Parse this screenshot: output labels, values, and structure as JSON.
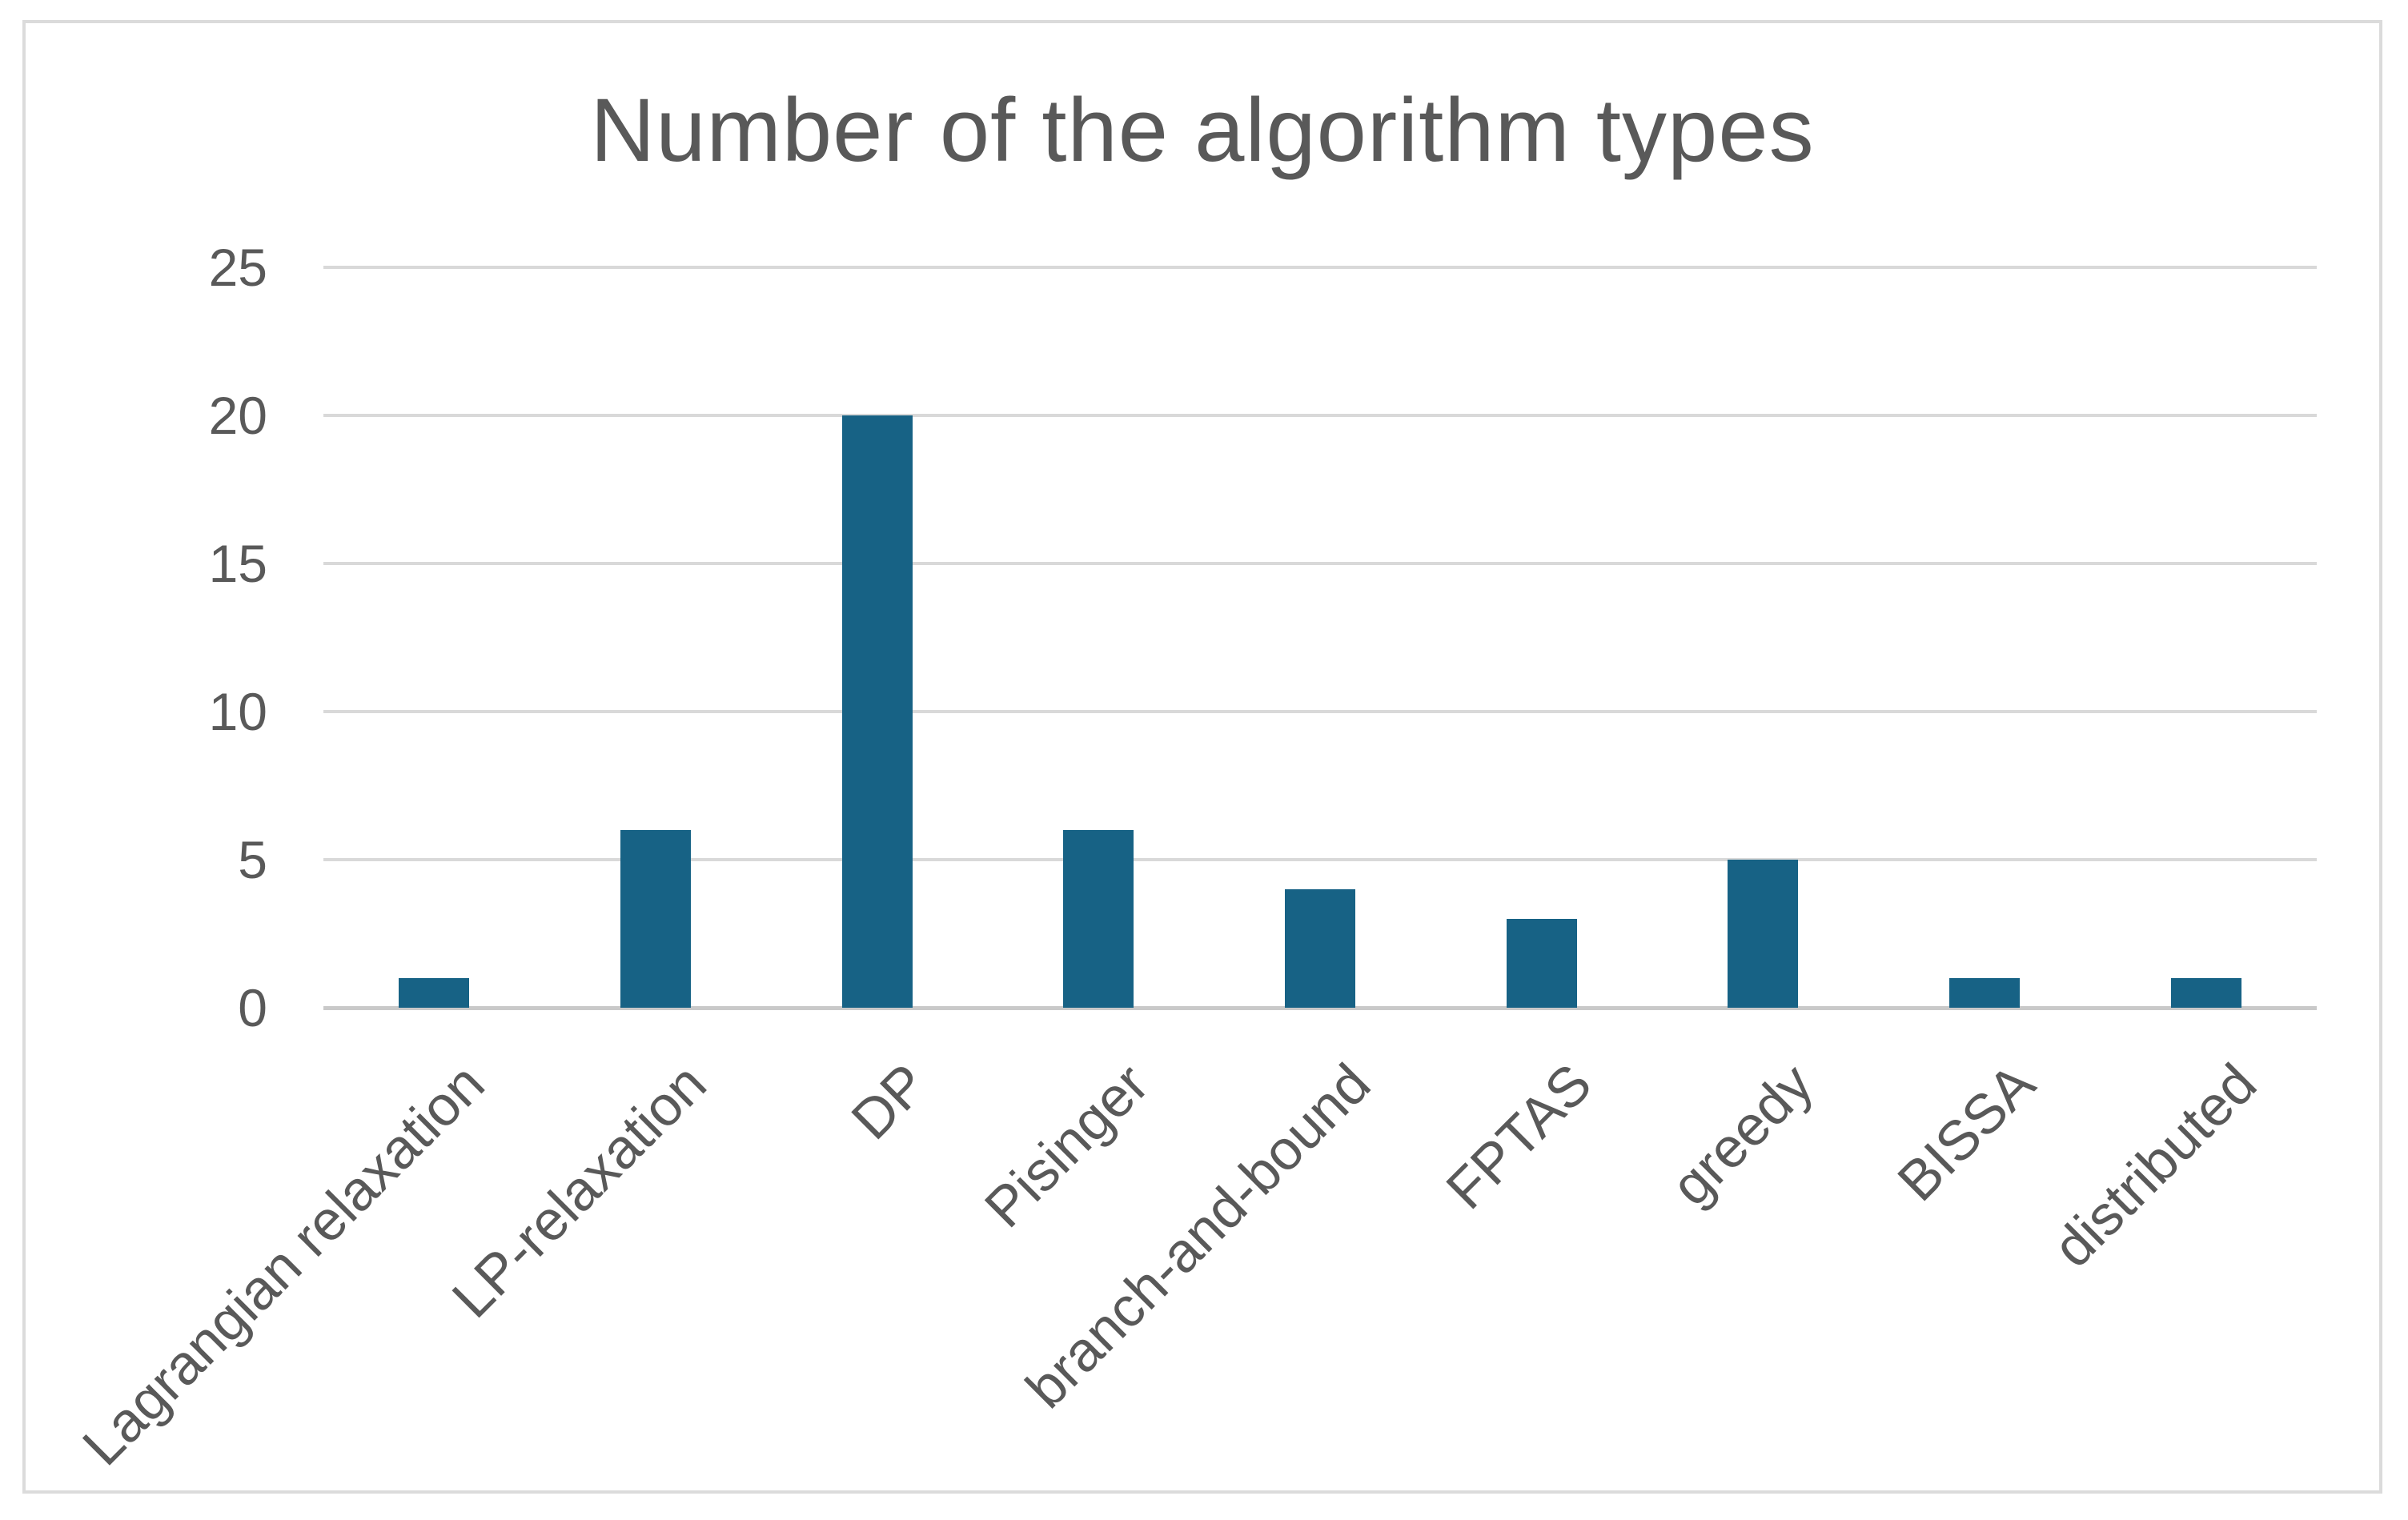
{
  "chart_data": {
    "type": "bar",
    "title": "Number of the algorithm types",
    "categories": [
      "Lagrangian relaxation",
      "LP-relaxation",
      "DP",
      "Pisinger",
      "branch-and-bound",
      "FPTAS",
      "greedy",
      "BISSA",
      "distributed"
    ],
    "values": [
      1,
      6,
      20,
      6,
      4,
      3,
      5,
      1,
      1
    ],
    "yticks": [
      0,
      5,
      10,
      15,
      20,
      25
    ],
    "ylim": [
      0,
      25
    ],
    "xlabel": "",
    "ylabel": "",
    "grid": true,
    "legend_position": "none",
    "x_label_rotation_degrees": 45,
    "colors": {
      "bar_fill": "#176285",
      "gridline": "#d9d9d9",
      "axis_line": "#c9c9c9",
      "tick_label": "#595959",
      "title": "#595959",
      "frame_border": "#dbdbdb",
      "background": "#ffffff"
    }
  }
}
